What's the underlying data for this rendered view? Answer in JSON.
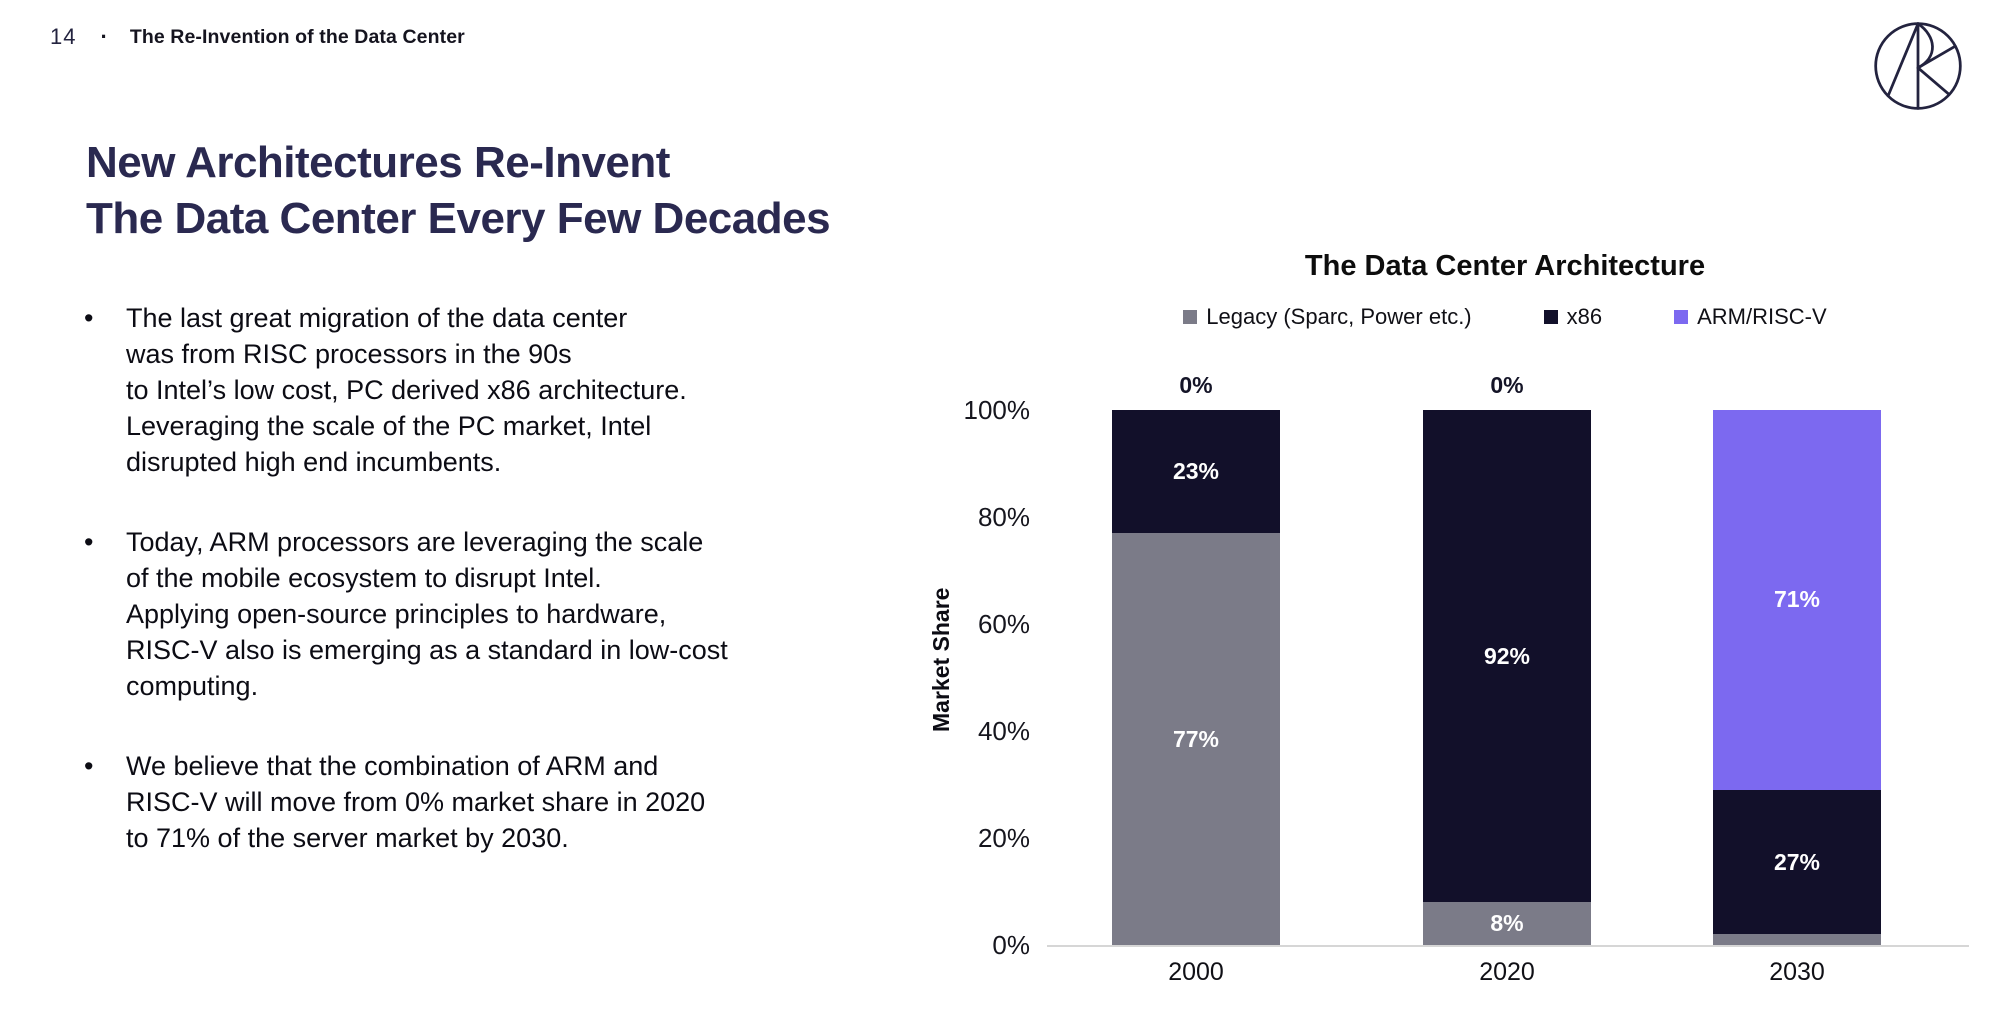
{
  "header": {
    "page_number": "14",
    "separator": "·",
    "title": "The Re-Invention of the Data Center"
  },
  "icons": {
    "logo": "ark-circle-monogram-logo"
  },
  "title": {
    "line1": "New Architectures Re-Invent",
    "line2": "The Data Center Every Few Decades"
  },
  "bullet_marker": "•",
  "bullets": [
    {
      "lines": [
        "The last great migration of the data center",
        "was from RISC processors in the 90s",
        "to Intel’s low cost, PC derived x86 architecture.",
        "Leveraging the scale of the PC market, Intel",
        "disrupted high end incumbents."
      ]
    },
    {
      "lines": [
        "Today, ARM processors are leveraging the scale",
        "of the mobile ecosystem to disrupt Intel.",
        "Applying open-source principles to hardware,",
        "RISC-V also is emerging as a standard in low-cost",
        "computing."
      ]
    },
    {
      "lines": [
        "We believe that the combination of ARM and",
        "RISC-V will move from 0% market share in 2020",
        "to 71% of the server market by 2030."
      ]
    }
  ],
  "chart_data": {
    "type": "bar",
    "stacked": true,
    "title": "The Data Center Architecture",
    "ylabel": "Market Share",
    "xlabel": "",
    "categories": [
      "2000",
      "2020",
      "2030"
    ],
    "series": [
      {
        "name": "Legacy (Sparc, Power etc.)",
        "color": "#7b7b88",
        "values": [
          77,
          8,
          2
        ]
      },
      {
        "name": "x86",
        "color": "#12102a",
        "values": [
          23,
          92,
          27
        ]
      },
      {
        "name": "ARM/RISC-V",
        "color": "#7c69f0",
        "values": [
          0,
          0,
          71
        ]
      }
    ],
    "y_ticks": [
      "100%",
      "80%",
      "60%",
      "40%",
      "20%",
      "0%"
    ],
    "ylim": [
      0,
      100
    ],
    "grid": false,
    "legend_position": "top",
    "data_label_color_inside": "#ffffff",
    "data_label_color_outside": "#141427"
  },
  "colors": {
    "heading_navy": "#2a2950",
    "logo_navy": "#23233f",
    "axis_line": "#d6d6d6"
  }
}
